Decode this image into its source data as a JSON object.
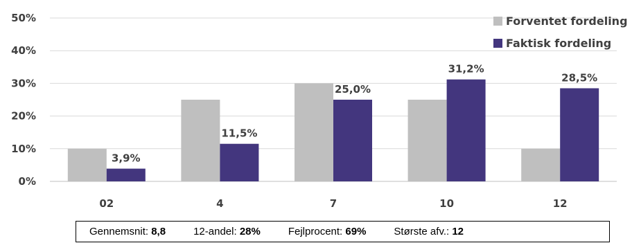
{
  "chart_data": {
    "type": "bar",
    "categories": [
      "02",
      "4",
      "7",
      "10",
      "12"
    ],
    "series": [
      {
        "name": "Forventet fordeling",
        "values": [
          10,
          25,
          30,
          25,
          10
        ],
        "color": "#bfbfbf"
      },
      {
        "name": "Faktisk fordeling",
        "values": [
          3.9,
          11.5,
          25.0,
          31.2,
          28.5
        ],
        "color": "#43367e"
      }
    ],
    "data_labels": [
      "3,9%",
      "11,5%",
      "25,0%",
      "31,2%",
      "28,5%"
    ],
    "y_ticks": [
      "0%",
      "10%",
      "20%",
      "30%",
      "40%",
      "50%"
    ],
    "ylim": [
      0,
      50
    ],
    "grid": true,
    "legend_position": "top-right"
  },
  "stats": [
    {
      "label": "Gennemsnit:",
      "value": "8,8"
    },
    {
      "label": "12-andel:",
      "value": "28%"
    },
    {
      "label": "Fejlprocent:",
      "value": "69%"
    },
    {
      "label": "Største afv.:",
      "value": "12"
    }
  ],
  "colors": {
    "grid": "#d9d9d9",
    "axis": "#bfbfbf",
    "border": "#000000"
  }
}
